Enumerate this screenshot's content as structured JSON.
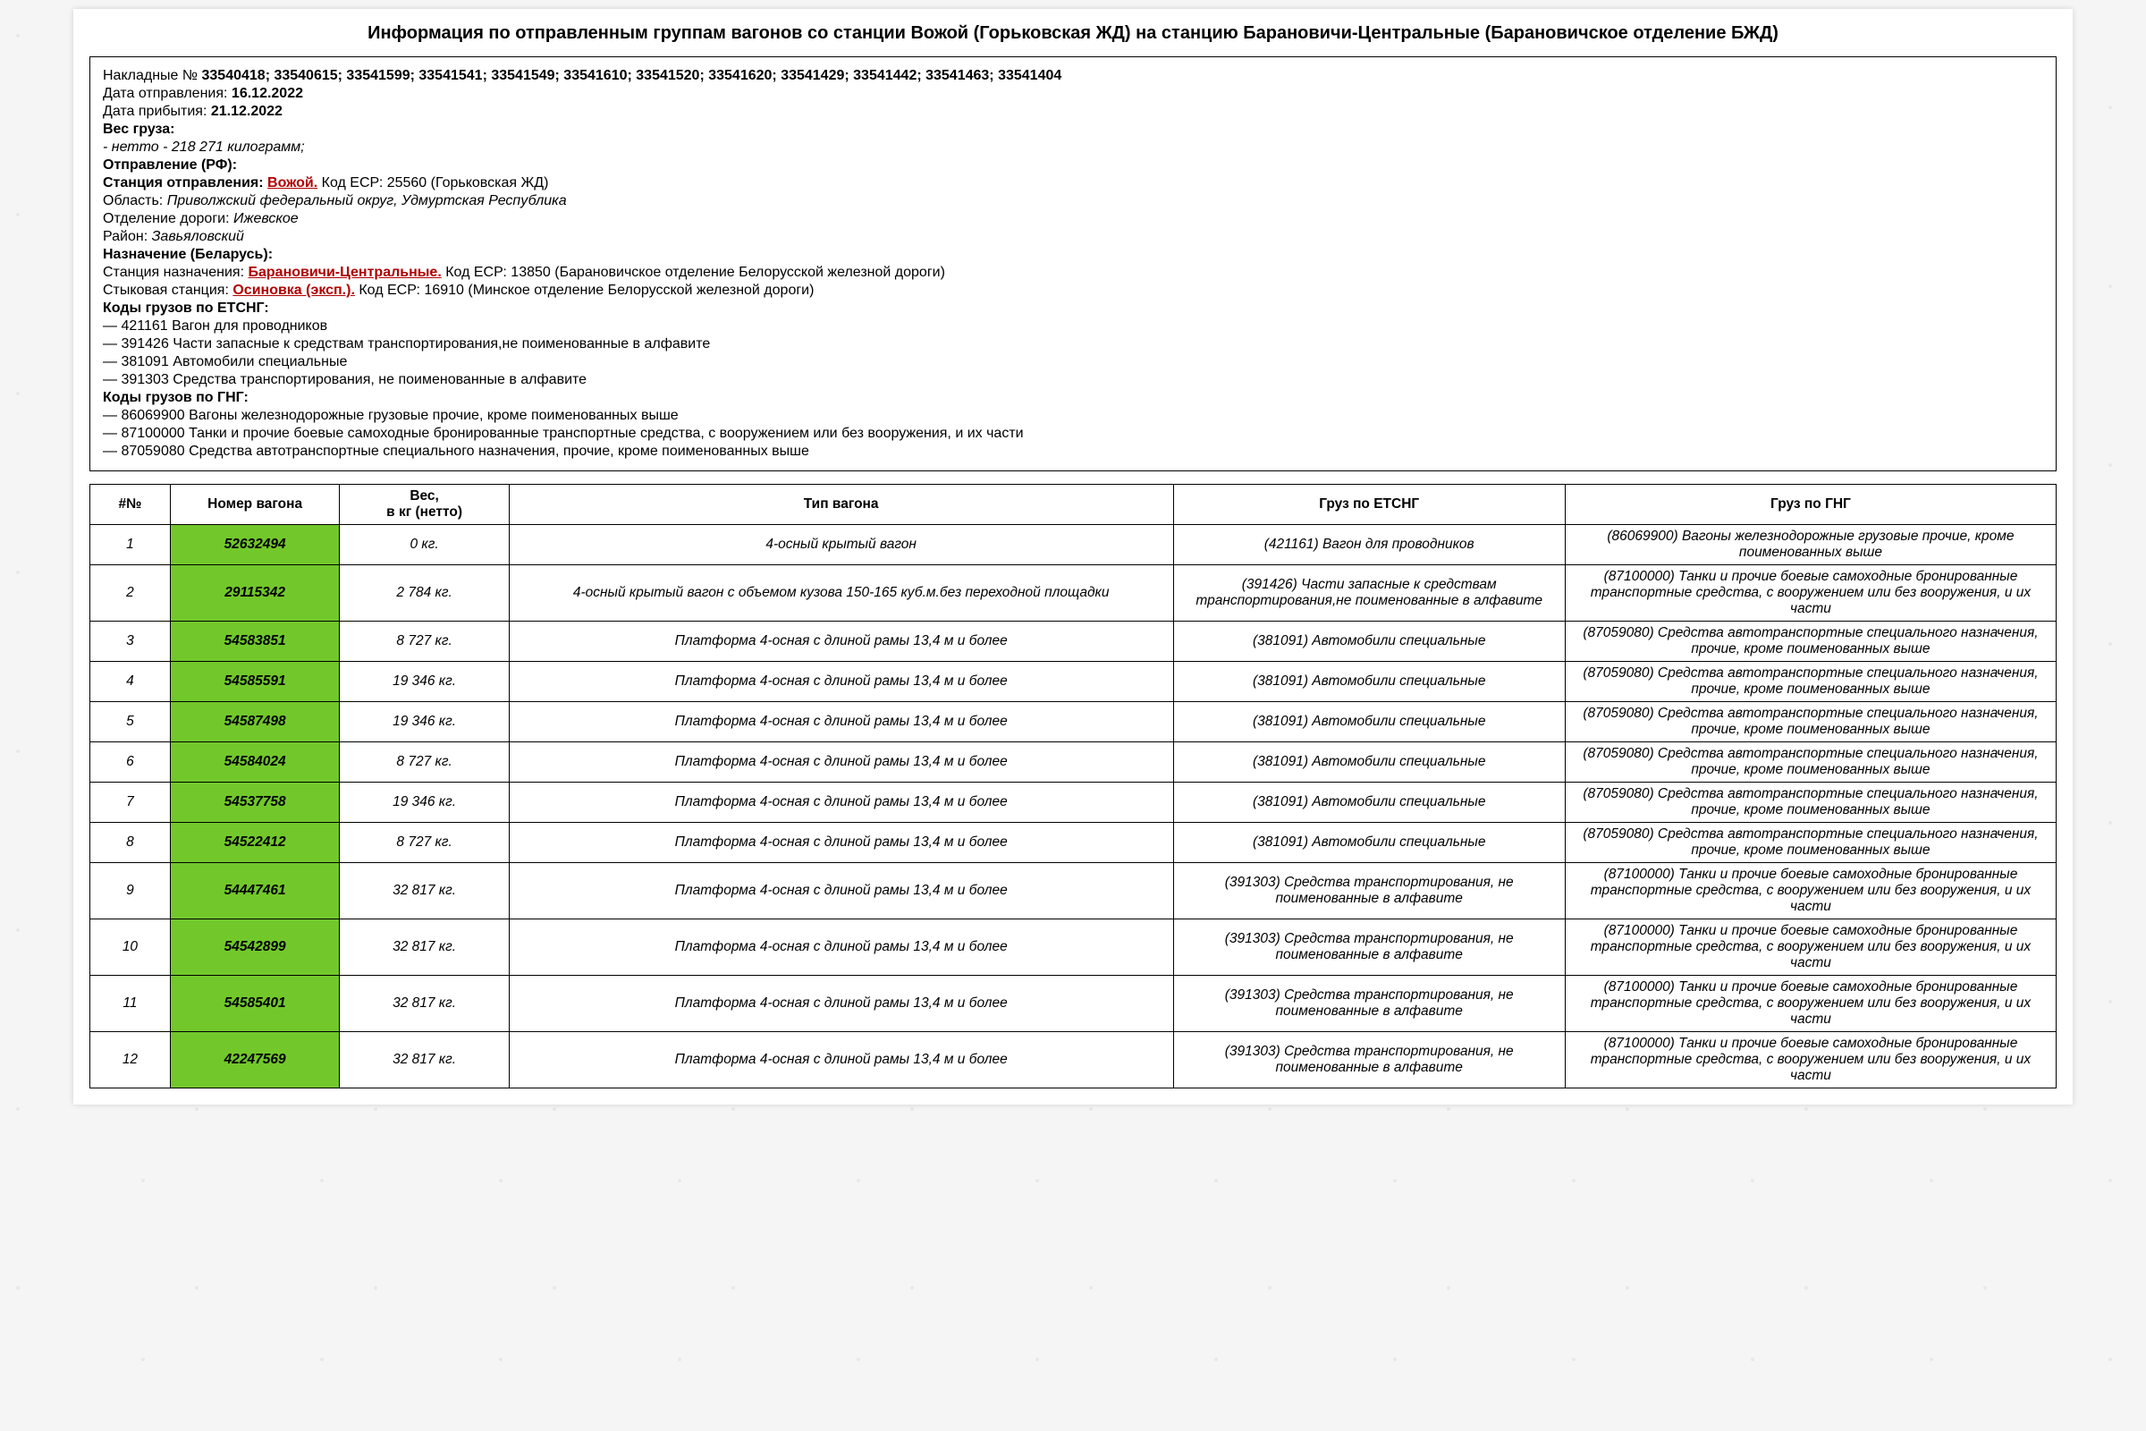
{
  "title": "Информация по отправленным группам вагонов со станции Вожой (Горьковская ЖД) на станцию Барановичи-Центральные (Барановичское отделение БЖД)",
  "waybills_label": "Накладные №",
  "waybills": "33540418; 33540615; 33541599; 33541541; 33541549; 33541610; 33541520; 33541620; 33541429; 33541442; 33541463; 33541404",
  "dep_date_label": "Дата отправления:",
  "dep_date": "16.12.2022",
  "arr_date_label": "Дата прибытия:",
  "arr_date": "21.12.2022",
  "weight_header": "Вес груза:",
  "weight_net_label": "- нетто -",
  "weight_net": "218 271 килограмм;",
  "origin_header": "Отправление (РФ):",
  "origin_station_label": "Станция отправления:",
  "origin_station_link": "Вожой.",
  "origin_station_rest": "Код ЕСР: 25560 (Горьковская ЖД)",
  "origin_region_label": "Область:",
  "origin_region": "Приволжский федеральный округ, Удмуртская Республика",
  "origin_branch_label": "Отделение дороги:",
  "origin_branch": "Ижевское",
  "origin_district_label": "Район:",
  "origin_district": "Завьяловский",
  "dest_header": "Назначение (Беларусь):",
  "dest_station_label": "Станция назначения:",
  "dest_station_link": "Барановичи-Центральные.",
  "dest_station_rest": "Код ЕСР: 13850 (Барановичское отделение Белорусской железной дороги)",
  "junction_label": "Стыковая станция:",
  "junction_link": "Осиновка (эксп.).",
  "junction_rest": "Код ЕСР: 16910 (Минское отделение Белорусской железной дороги)",
  "etsng_header": "Коды грузов по ЕТСНГ:",
  "etsng_codes": [
    "— 421161 Вагон для проводников",
    "— 391426 Части запасные к средствам транспортирования,не поименованные в алфавите",
    "— 381091 Автомобили специальные",
    "— 391303 Средства транспортирования, не поименованные в алфавите"
  ],
  "gng_header": "Коды грузов по ГНГ:",
  "gng_codes": [
    "— 86069900 Вагоны железнодорожные грузовые прочие, кроме поименованных выше",
    "— 87100000 Танки и прочие боевые самоходные бронированные транспортные средства, с вооружением или без вооружения, и их части",
    "— 87059080 Средства автотранспортные специального назначения, прочие, кроме поименованных выше"
  ],
  "columns": [
    "#№",
    "Номер вагона",
    "Вес,\nв кг (нетто)",
    "Тип вагона",
    "Груз по ЕТСНГ",
    "Груз по ГНГ"
  ],
  "wagon_cell_bg": "#72c82b",
  "rows": [
    {
      "n": "1",
      "wagon": "52632494",
      "weight": "0 кг.",
      "type": "4-осный крытый вагон",
      "etsng": "(421161) Вагон для проводников",
      "gng": "(86069900) Вагоны железнодорожные грузовые прочие, кроме поименованных выше"
    },
    {
      "n": "2",
      "wagon": "29115342",
      "weight": "2 784 кг.",
      "type": "4-осный крытый вагон с объемом кузова 150-165 куб.м.без переходной площадки",
      "etsng": "(391426) Части запасные к средствам транспортирования,не поименованные в алфавите",
      "gng": "(87100000) Танки и прочие боевые самоходные бронированные транспортные средства, с вооружением или без вооружения, и их части"
    },
    {
      "n": "3",
      "wagon": "54583851",
      "weight": "8 727 кг.",
      "type": "Платформа 4-осная с длиной рамы 13,4 м и более",
      "etsng": "(381091) Автомобили специальные",
      "gng": "(87059080) Средства автотранспортные специального назначения, прочие, кроме поименованных выше"
    },
    {
      "n": "4",
      "wagon": "54585591",
      "weight": "19 346 кг.",
      "type": "Платформа 4-осная с длиной рамы 13,4 м и более",
      "etsng": "(381091) Автомобили специальные",
      "gng": "(87059080) Средства автотранспортные специального назначения, прочие, кроме поименованных выше"
    },
    {
      "n": "5",
      "wagon": "54587498",
      "weight": "19 346 кг.",
      "type": "Платформа 4-осная с длиной рамы 13,4 м и более",
      "etsng": "(381091) Автомобили специальные",
      "gng": "(87059080) Средства автотранспортные специального назначения, прочие, кроме поименованных выше"
    },
    {
      "n": "6",
      "wagon": "54584024",
      "weight": "8 727 кг.",
      "type": "Платформа 4-осная с длиной рамы 13,4 м и более",
      "etsng": "(381091) Автомобили специальные",
      "gng": "(87059080) Средства автотранспортные специального назначения, прочие, кроме поименованных выше"
    },
    {
      "n": "7",
      "wagon": "54537758",
      "weight": "19 346 кг.",
      "type": "Платформа 4-осная с длиной рамы 13,4 м и более",
      "etsng": "(381091) Автомобили специальные",
      "gng": "(87059080) Средства автотранспортные специального назначения, прочие, кроме поименованных выше"
    },
    {
      "n": "8",
      "wagon": "54522412",
      "weight": "8 727 кг.",
      "type": "Платформа 4-осная с длиной рамы 13,4 м и более",
      "etsng": "(381091) Автомобили специальные",
      "gng": "(87059080) Средства автотранспортные специального назначения, прочие, кроме поименованных выше"
    },
    {
      "n": "9",
      "wagon": "54447461",
      "weight": "32 817 кг.",
      "type": "Платформа 4-осная с длиной рамы 13,4 м и более",
      "etsng": "(391303) Средства транспортирования, не поименованные в алфавите",
      "gng": "(87100000) Танки и прочие боевые самоходные бронированные транспортные средства, с вооружением или без вооружения, и их части"
    },
    {
      "n": "10",
      "wagon": "54542899",
      "weight": "32 817 кг.",
      "type": "Платформа 4-осная с длиной рамы 13,4 м и более",
      "etsng": "(391303) Средства транспортирования, не поименованные в алфавите",
      "gng": "(87100000) Танки и прочие боевые самоходные бронированные транспортные средства, с вооружением или без вооружения, и их части"
    },
    {
      "n": "11",
      "wagon": "54585401",
      "weight": "32 817 кг.",
      "type": "Платформа 4-осная с длиной рамы 13,4 м и более",
      "etsng": "(391303) Средства транспортирования, не поименованные в алфавите",
      "gng": "(87100000) Танки и прочие боевые самоходные бронированные транспортные средства, с вооружением или без вооружения, и их части"
    },
    {
      "n": "12",
      "wagon": "42247569",
      "weight": "32 817 кг.",
      "type": "Платформа 4-осная с длиной рамы 13,4 м и более",
      "etsng": "(391303) Средства транспортирования, не поименованные в алфавите",
      "gng": "(87100000) Танки и прочие боевые самоходные бронированные транспортные средства, с вооружением или без вооружения, и их части"
    }
  ]
}
